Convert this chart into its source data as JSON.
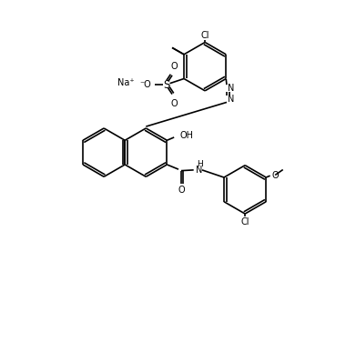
{
  "background_color": "#ffffff",
  "line_color": "#000000",
  "figsize": [
    3.91,
    3.76
  ],
  "dpi": 100,
  "Na_label": "Na⁺",
  "minus_O_label": "⁻O",
  "S_label": "S",
  "O_up_label": "O",
  "O_down_label": "O",
  "Cl_top_label": "Cl",
  "methyl_label": "  ",
  "azo_N1": "N",
  "azo_N2": "N",
  "OH_label": "OH",
  "NH_label": "H",
  "N_label": "N",
  "O_amide_label": "O",
  "Cl_bottom_label": "Cl",
  "O_methoxy_label": "O",
  "methoxy_CH3": "  "
}
